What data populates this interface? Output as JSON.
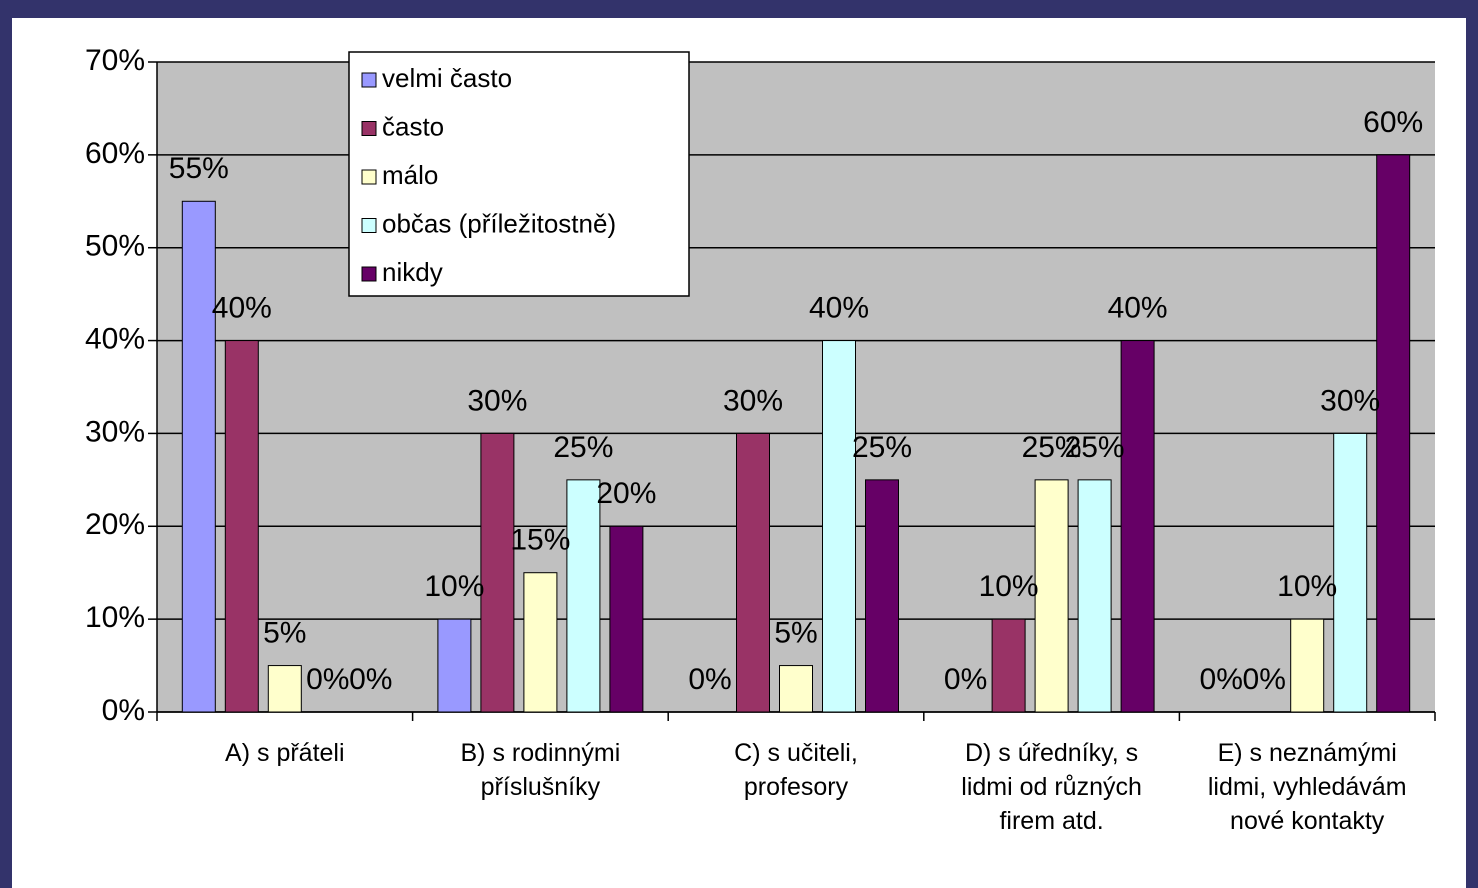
{
  "chart_data": {
    "type": "bar",
    "categories": [
      "A) s přáteli",
      "B) s rodinnými příslušníky",
      "C) s učiteli, profesory",
      "D) s úředníky, s lidmi od různých firem atd.",
      "E) s neznámými lidmi, vyhledávám nové kontakty"
    ],
    "series": [
      {
        "name": "velmi často",
        "color": "#9999ff",
        "values": [
          55,
          10,
          0,
          0,
          0
        ],
        "value_labels": [
          "55%",
          "10%",
          "0%",
          "0%",
          "0%"
        ]
      },
      {
        "name": "často",
        "color": "#993366",
        "values": [
          40,
          30,
          30,
          10,
          0
        ],
        "value_labels": [
          "40%",
          "30%",
          "30%",
          "10%",
          "0%"
        ]
      },
      {
        "name": "málo",
        "color": "#ffffcc",
        "values": [
          5,
          15,
          5,
          25,
          10
        ],
        "value_labels": [
          "5%",
          "15%",
          "5%",
          "25%",
          "10%"
        ]
      },
      {
        "name": "občas (příležitostně)",
        "color": "#ccffff",
        "values": [
          0,
          25,
          40,
          25,
          30
        ],
        "value_labels": [
          "0%",
          "25%",
          "40%",
          "25%",
          "30%"
        ]
      },
      {
        "name": "nikdy",
        "color": "#660066",
        "values": [
          0,
          20,
          25,
          40,
          60
        ],
        "value_labels": [
          "0%",
          "20%",
          "25%",
          "40%",
          "60%"
        ]
      }
    ],
    "ylim": [
      0,
      70
    ],
    "yticks": [
      {
        "value": 0,
        "label": "0%"
      },
      {
        "value": 10,
        "label": "10%"
      },
      {
        "value": 20,
        "label": "20%"
      },
      {
        "value": 30,
        "label": "30%"
      },
      {
        "value": 40,
        "label": "40%"
      },
      {
        "value": 50,
        "label": "50%"
      },
      {
        "value": 60,
        "label": "60%"
      },
      {
        "value": 70,
        "label": "70%"
      }
    ],
    "grid": true,
    "plot_background": "#c0c0c0",
    "legend": "top-left"
  }
}
